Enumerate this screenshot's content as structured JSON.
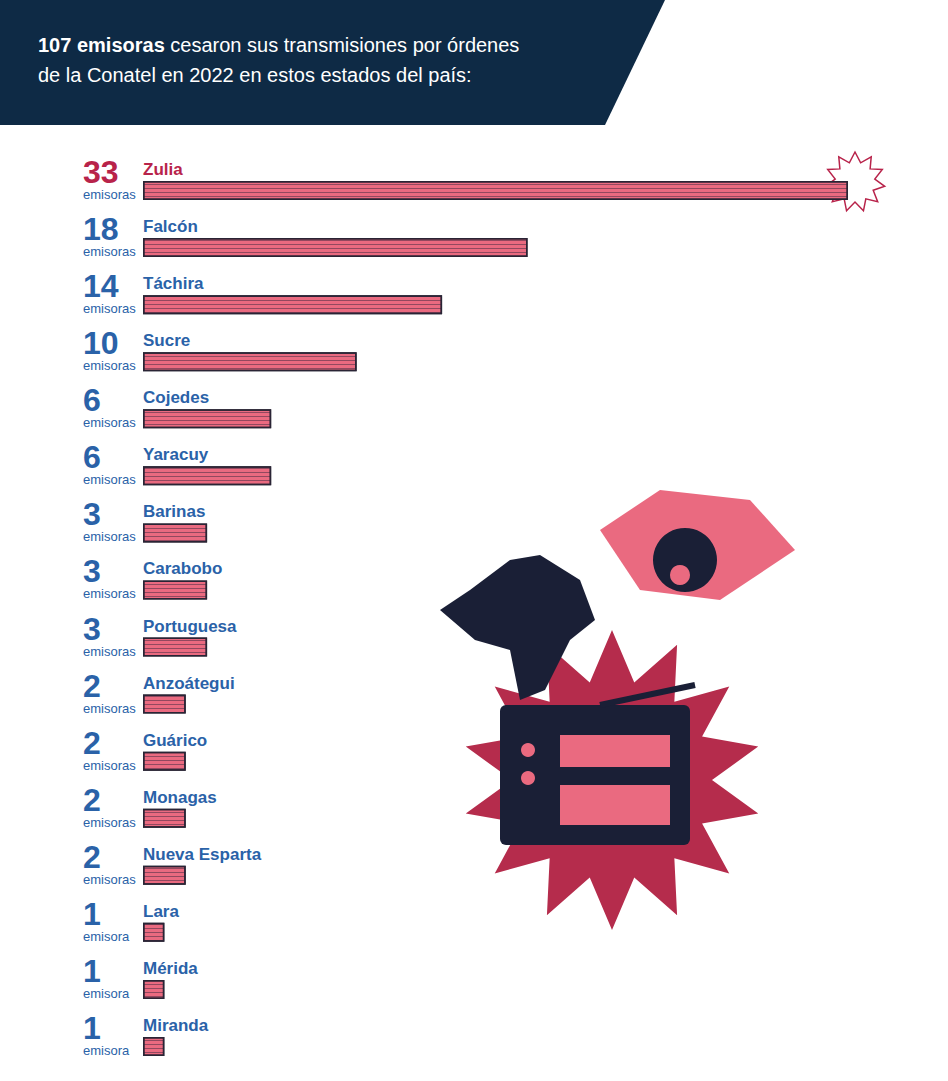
{
  "chart_data": {
    "type": "bar",
    "orientation": "horizontal",
    "title": "107 emisoras cesaron sus transmisiones por órdenes de la Conatel en 2022 en estos estados del país:",
    "categories": [
      "Zulia",
      "Falcón",
      "Táchira",
      "Sucre",
      "Cojedes",
      "Yaracuy",
      "Barinas",
      "Carabobo",
      "Portuguesa",
      "Anzoátegui",
      "Guárico",
      "Monagas",
      "Nueva Esparta",
      "Lara",
      "Mérida",
      "Miranda"
    ],
    "values": [
      33,
      18,
      14,
      10,
      6,
      6,
      3,
      3,
      3,
      2,
      2,
      2,
      2,
      1,
      1,
      1
    ],
    "units": [
      "emisoras",
      "emisoras",
      "emisoras",
      "emisoras",
      "emisoras",
      "emisoras",
      "emisoras",
      "emisoras",
      "emisoras",
      "emisoras",
      "emisoras",
      "emisoras",
      "emisoras",
      "emisora",
      "emisora",
      "emisora"
    ],
    "color": "#ea6a80",
    "xlim": [
      0,
      33
    ],
    "data_labels": true,
    "tick_labels": false,
    "grid": false
  }
}
